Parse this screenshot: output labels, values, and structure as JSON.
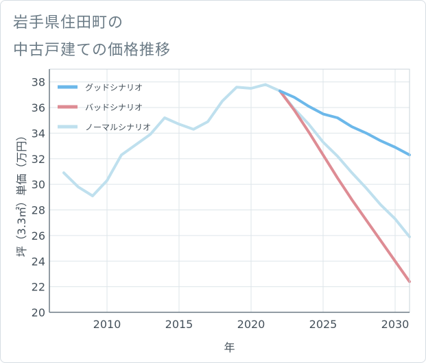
{
  "title_lines": [
    "岩手県住田町の",
    "中古戸建ての価格推移"
  ],
  "chart_data": {
    "type": "line",
    "xlabel": "年",
    "ylabel": "坪（3.3㎡）単価（万円）",
    "xlim": [
      2006,
      2031
    ],
    "ylim": [
      20,
      39
    ],
    "x_ticks": [
      2010,
      2015,
      2020,
      2025,
      2030
    ],
    "y_ticks": [
      20,
      22,
      24,
      26,
      28,
      30,
      32,
      34,
      36,
      38
    ],
    "grid": true,
    "legend_position": "top-left",
    "series": [
      {
        "name": "グッドシナリオ",
        "color": "#6cb8ea",
        "x": [
          2022,
          2023,
          2024,
          2025,
          2026,
          2027,
          2028,
          2029,
          2030,
          2031
        ],
        "y": [
          37.3,
          36.8,
          36.1,
          35.5,
          35.2,
          34.5,
          34.0,
          33.4,
          32.9,
          32.3
        ]
      },
      {
        "name": "バッドシナリオ",
        "color": "#de8c94",
        "x": [
          2022,
          2023,
          2024,
          2025,
          2026,
          2027,
          2028,
          2029,
          2030,
          2031
        ],
        "y": [
          37.3,
          35.8,
          34.1,
          32.3,
          30.5,
          28.8,
          27.2,
          25.6,
          24.0,
          22.4
        ]
      },
      {
        "name": "ノーマルシナリオ",
        "color": "#bfe0ee",
        "x": [
          2007,
          2008,
          2009,
          2010,
          2011,
          2012,
          2013,
          2014,
          2015,
          2016,
          2017,
          2018,
          2019,
          2020,
          2021,
          2022,
          2023,
          2024,
          2025,
          2026,
          2027,
          2028,
          2029,
          2030,
          2031
        ],
        "y": [
          30.9,
          29.8,
          29.1,
          30.3,
          32.3,
          33.1,
          33.9,
          35.2,
          34.7,
          34.3,
          34.9,
          36.5,
          37.6,
          37.5,
          37.8,
          37.3,
          35.9,
          34.7,
          33.3,
          32.2,
          30.9,
          29.7,
          28.4,
          27.3,
          25.9
        ]
      }
    ]
  }
}
